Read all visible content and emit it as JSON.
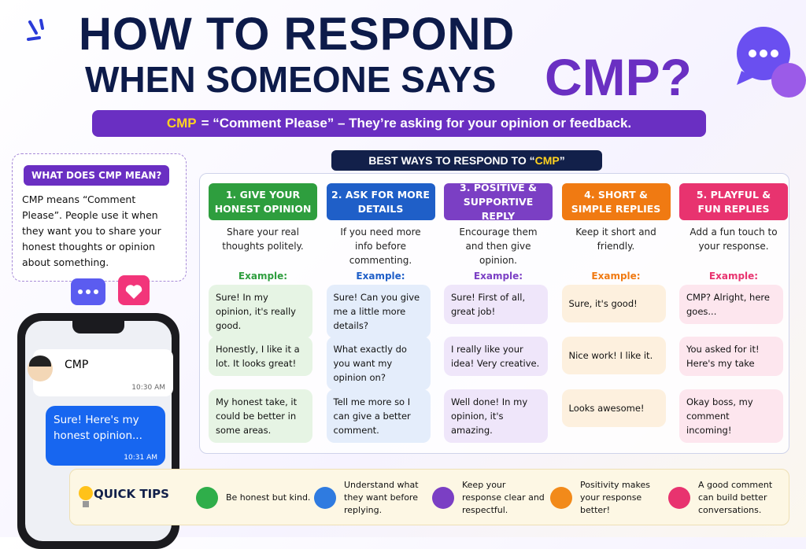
{
  "title": {
    "line1": "HOW TO RESPOND",
    "line2": "WHEN SOMEONE SAYS",
    "highlight": "CMP?"
  },
  "subtitle": {
    "acronym": "CMP",
    "definition": "= “Comment Please” – They’re asking for your opinion or feedback."
  },
  "sidebar": {
    "heading": "WHAT DOES CMP MEAN?",
    "body": "CMP means “Comment Please”. People use it when they want you to share your honest thoughts or opinion about something."
  },
  "phone": {
    "incoming": {
      "text": "CMP",
      "time": "10:30 AM"
    },
    "outgoing": {
      "text": "Sure! Here's my honest opinion...",
      "time": "10:31 AM"
    }
  },
  "section": {
    "prefix": "BEST WAYS TO RESPOND TO “",
    "highlight": "CMP",
    "suffix": "”"
  },
  "columns": [
    {
      "title": "1. GIVE YOUR HONEST OPINION",
      "description": "Share your real thoughts politely.",
      "example_label": "Example:",
      "examples": [
        "Sure! In my opinion, it's really good.",
        "Honestly, I like it a lot. It looks great!",
        "My honest take, it could be better in some areas."
      ]
    },
    {
      "title": "2. ASK FOR MORE DETAILS",
      "description": "If you need more info before commenting.",
      "example_label": "Example:",
      "examples": [
        "Sure! Can you give me a little more details?",
        "What exactly do you want my opinion on?",
        "Tell me more so I can give a better comment."
      ]
    },
    {
      "title": "3. POSITIVE & SUPPORTIVE REPLY",
      "description": "Encourage them and then give opinion.",
      "example_label": "Example:",
      "examples": [
        "Sure! First of all, great job!",
        "I really like your idea! Very creative.",
        "Well done! In my opinion, it's amazing."
      ]
    },
    {
      "title": "4. SHORT & SIMPLE REPLIES",
      "description": "Keep it short and friendly.",
      "example_label": "Example:",
      "examples": [
        "Sure, it's good!",
        "Nice work! I like it.",
        "Looks awesome!"
      ]
    },
    {
      "title": "5. PLAYFUL & FUN REPLIES",
      "description": "Add a fun touch to your response.",
      "example_label": "Example:",
      "examples": [
        "CMP? Alright, here goes...",
        "You asked for it! Here's my take",
        "Okay boss, my comment incoming!"
      ]
    }
  ],
  "tips": {
    "label": "QUICK TIPS",
    "items": [
      "Be honest but kind.",
      "Understand what they want before replying.",
      "Keep your response clear and respectful.",
      "Positivity makes your response better!",
      "A good comment can build better conversations."
    ]
  }
}
